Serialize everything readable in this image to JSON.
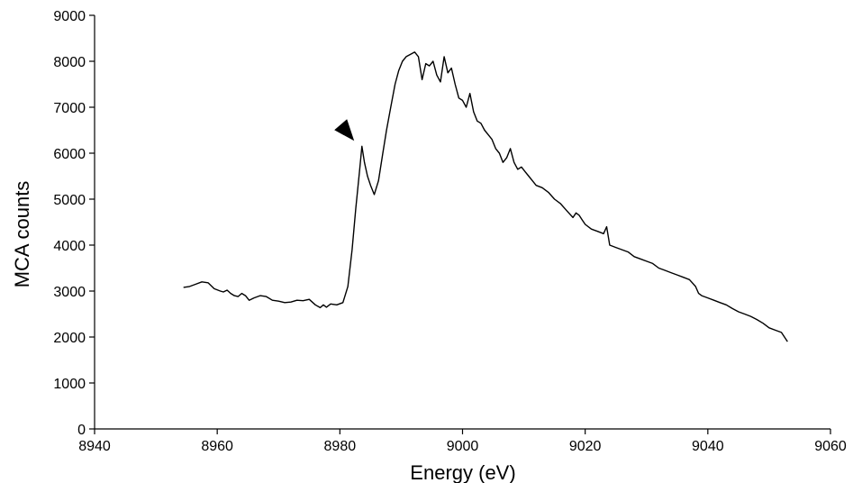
{
  "chart_data": {
    "type": "line",
    "title": "",
    "xlabel": "Energy (eV)",
    "ylabel": "MCA counts",
    "xlim": [
      8940,
      9060
    ],
    "ylim": [
      0,
      9000
    ],
    "x_ticks": [
      8940,
      8960,
      8980,
      9000,
      9020,
      9040,
      9060
    ],
    "y_ticks": [
      0,
      1000,
      2000,
      3000,
      4000,
      5000,
      6000,
      7000,
      8000,
      9000
    ],
    "grid": false,
    "legend": "none",
    "line_color": "#000000",
    "annotation": {
      "type": "arrowhead-marker",
      "x": 8983.5,
      "y": 6150,
      "color": "#000000"
    },
    "series": [
      {
        "x": [
          8954.5,
          8955.5,
          8956.5,
          8957.5,
          8958.5,
          8959.5,
          8960.5,
          8961.0,
          8961.6,
          8962.2,
          8962.8,
          8963.4,
          8964.0,
          8964.6,
          8965.2,
          8966.0,
          8967.0,
          8968.0,
          8969.0,
          8970.0,
          8971.0,
          8972.0,
          8973.0,
          8974.0,
          8975.0,
          8976.0,
          8976.8,
          8977.3,
          8977.8,
          8978.5,
          8979.5,
          8980.5,
          8981.3,
          8982.0,
          8982.6,
          8983.2,
          8983.6,
          8984.0,
          8984.5,
          8985.0,
          8985.6,
          8986.3,
          8987.0,
          8987.6,
          8988.3,
          8989.0,
          8989.6,
          8990.2,
          8990.8,
          8991.5,
          8992.2,
          8992.8,
          8993.4,
          8994.0,
          8994.6,
          8995.2,
          8995.8,
          8996.4,
          8997.0,
          8997.6,
          8998.2,
          8998.8,
          8999.4,
          9000.0,
          9000.6,
          9001.2,
          9001.8,
          9002.4,
          9003.0,
          9003.6,
          9004.2,
          9004.8,
          9005.4,
          9006.0,
          9006.6,
          9007.2,
          9007.8,
          9008.4,
          9009.0,
          9009.6,
          9010.2,
          9010.8,
          9011.4,
          9012.0,
          9013.0,
          9014.0,
          9015.0,
          9016.0,
          9017.0,
          9018.0,
          9018.5,
          9019.0,
          9019.5,
          9020.0,
          9021.0,
          9022.0,
          9023.0,
          9023.5,
          9024.0,
          9025.0,
          9026.0,
          9027.0,
          9028.0,
          9029.0,
          9030.0,
          9031.0,
          9032.0,
          9033.0,
          9034.0,
          9035.0,
          9036.0,
          9037.0,
          9038.0,
          9038.5,
          9039.0,
          9040.0,
          9041.0,
          9042.0,
          9043.0,
          9044.0,
          9045.0,
          9046.0,
          9047.0,
          9048.0,
          9049.0,
          9050.0,
          9051.0,
          9052.0,
          9053.0
        ],
        "y": [
          3080,
          3100,
          3150,
          3200,
          3180,
          3050,
          3000,
          2980,
          3020,
          2950,
          2900,
          2880,
          2950,
          2900,
          2800,
          2850,
          2900,
          2880,
          2800,
          2780,
          2750,
          2760,
          2800,
          2790,
          2820,
          2700,
          2640,
          2700,
          2650,
          2720,
          2700,
          2750,
          3100,
          3900,
          4800,
          5600,
          6150,
          5800,
          5500,
          5300,
          5100,
          5400,
          6000,
          6500,
          7000,
          7500,
          7800,
          8000,
          8100,
          8150,
          8200,
          8100,
          7600,
          7950,
          7900,
          8000,
          7700,
          7550,
          8100,
          7750,
          7850,
          7500,
          7200,
          7150,
          7000,
          7300,
          6900,
          6700,
          6650,
          6500,
          6400,
          6300,
          6100,
          6000,
          5800,
          5900,
          6100,
          5800,
          5650,
          5700,
          5600,
          5500,
          5400,
          5300,
          5250,
          5150,
          5000,
          4900,
          4750,
          4600,
          4700,
          4650,
          4550,
          4450,
          4350,
          4300,
          4250,
          4400,
          4000,
          3950,
          3900,
          3850,
          3750,
          3700,
          3650,
          3600,
          3500,
          3450,
          3400,
          3350,
          3300,
          3250,
          3100,
          2950,
          2900,
          2850,
          2800,
          2750,
          2700,
          2620,
          2550,
          2500,
          2450,
          2380,
          2300,
          2200,
          2150,
          2100,
          1900
        ]
      }
    ]
  }
}
